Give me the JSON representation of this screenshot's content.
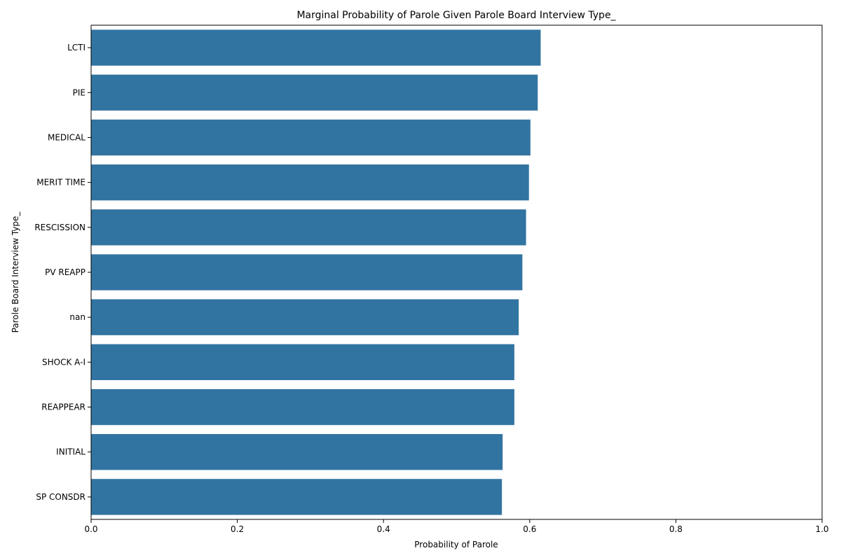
{
  "chart_data": {
    "type": "bar",
    "orientation": "horizontal",
    "title": "Marginal Probability of Parole Given Parole Board Interview Type_",
    "xlabel": "Probability of Parole",
    "ylabel": "Parole Board Interview Type_",
    "categories": [
      "LCTI",
      "PIE",
      "MEDICAL",
      "MERIT TIME",
      "RESCISSION",
      "PV REAPP",
      "nan",
      "SHOCK A-I",
      "REAPPEAR",
      "INITIAL",
      "SP CONSDR"
    ],
    "values": [
      0.615,
      0.611,
      0.601,
      0.599,
      0.595,
      0.59,
      0.585,
      0.579,
      0.579,
      0.563,
      0.562
    ],
    "xlim": [
      0,
      1.0
    ],
    "xticks": [
      "0.0",
      "0.2",
      "0.4",
      "0.6",
      "0.8",
      "1.0"
    ],
    "bar_color": "#3274a1",
    "grid": false
  }
}
